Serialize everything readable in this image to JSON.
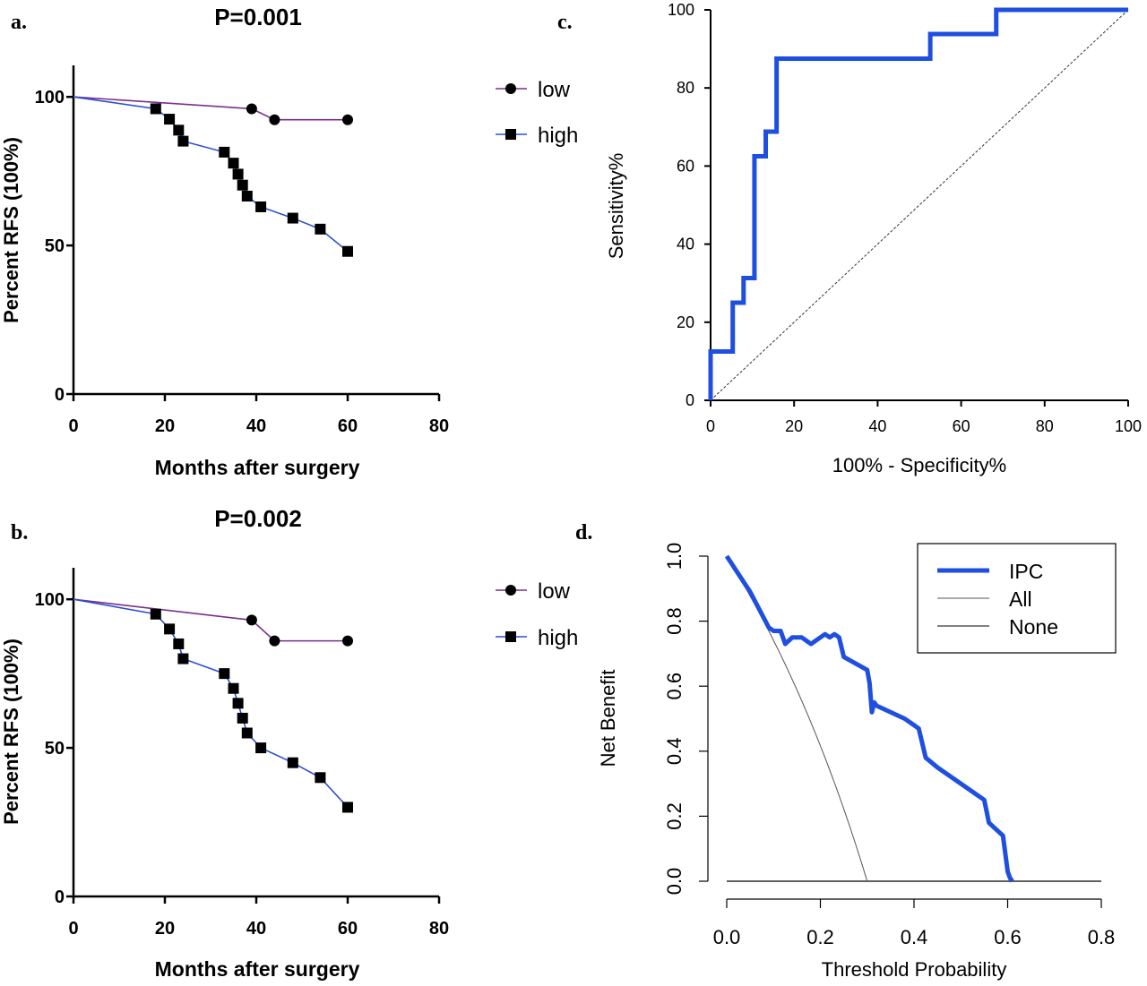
{
  "chart_data": [
    {
      "panel": "a.",
      "type": "line",
      "title": "P=0.001",
      "xlabel": "Months after surgery",
      "ylabel": "Percent  RFS (100%)",
      "xlim": [
        0,
        80
      ],
      "ylim": [
        0,
        110
      ],
      "xticks": [
        "0",
        "20",
        "40",
        "60",
        "80"
      ],
      "yticks": [
        "0",
        "50",
        "100"
      ],
      "legend": "top-right",
      "series": [
        {
          "name": "low",
          "marker": "circle",
          "color": "#7b2d8b",
          "x": [
            0,
            39,
            44,
            60
          ],
          "y": [
            100,
            96,
            92.3,
            92.3
          ],
          "marked": [
            false,
            true,
            true,
            true
          ]
        },
        {
          "name": "high",
          "marker": "square",
          "color": "#2b4fd6",
          "x": [
            0,
            18,
            21,
            23,
            24,
            33,
            35,
            36,
            37,
            38,
            41,
            48,
            54,
            60
          ],
          "y": [
            100,
            96,
            92.5,
            88.8,
            85.1,
            81.4,
            77.7,
            74,
            70.3,
            66.6,
            63,
            59.2,
            55.5,
            48
          ],
          "marked": [
            false,
            true,
            true,
            true,
            true,
            true,
            true,
            true,
            true,
            true,
            true,
            true,
            true,
            true
          ]
        }
      ]
    },
    {
      "panel": "b.",
      "type": "line",
      "title": "P=0.002",
      "xlabel": "Months after surgery",
      "ylabel": "Percent  RFS (100%)",
      "xlim": [
        0,
        80
      ],
      "ylim": [
        0,
        110
      ],
      "xticks": [
        "0",
        "20",
        "40",
        "60",
        "80"
      ],
      "yticks": [
        "0",
        "50",
        "100"
      ],
      "legend": "top-right",
      "series": [
        {
          "name": "low",
          "marker": "circle",
          "color": "#7b2d8b",
          "x": [
            0,
            39,
            44,
            60
          ],
          "y": [
            100,
            93,
            86,
            86
          ],
          "marked": [
            false,
            true,
            true,
            true
          ]
        },
        {
          "name": "high",
          "marker": "square",
          "color": "#2b4fd6",
          "x": [
            0,
            18,
            21,
            23,
            24,
            33,
            35,
            36,
            37,
            38,
            41,
            48,
            54,
            60
          ],
          "y": [
            100,
            95,
            90,
            85,
            80,
            75,
            70,
            65,
            60,
            55,
            50,
            45,
            40,
            30
          ],
          "marked": [
            false,
            true,
            true,
            true,
            true,
            true,
            true,
            true,
            true,
            true,
            true,
            true,
            true,
            true
          ]
        }
      ]
    },
    {
      "panel": "c.",
      "type": "line",
      "title": "",
      "xlabel": "100% - Specificity%",
      "ylabel": "Sensitivity%",
      "xlim": [
        0,
        100
      ],
      "ylim": [
        0,
        100
      ],
      "xticks": [
        "0",
        "20",
        "40",
        "60",
        "80",
        "100"
      ],
      "yticks": [
        "0",
        "20",
        "40",
        "60",
        "80",
        "100"
      ],
      "series": [
        {
          "name": "",
          "color": "#1f4fe0",
          "x": [
            0,
            0,
            5.3,
            5.3,
            7.9,
            7.9,
            10.5,
            10.5,
            13.2,
            13.2,
            15.8,
            15.8,
            52.6,
            52.6,
            68.4,
            68.4,
            100
          ],
          "y": [
            0,
            12.5,
            12.5,
            25,
            25,
            31.3,
            31.3,
            62.5,
            62.5,
            68.8,
            68.8,
            87.5,
            87.5,
            93.8,
            93.8,
            100,
            100
          ]
        },
        {
          "name": "",
          "style": "dashed",
          "color": "#333333",
          "x": [
            0,
            100
          ],
          "y": [
            0,
            100
          ]
        }
      ]
    },
    {
      "panel": "d.",
      "type": "line",
      "title": "",
      "xlabel": "Threshold Probability",
      "ylabel": "Net Benefit",
      "xlim": [
        0,
        0.8
      ],
      "ylim": [
        0,
        1
      ],
      "xticks": [
        "0.0",
        "0.2",
        "0.4",
        "0.6",
        "0.8"
      ],
      "yticks": [
        "0.0",
        "0.2",
        "0.4",
        "0.6",
        "0.8",
        "1.0"
      ],
      "legend": "top-right",
      "series": [
        {
          "name": "IPC",
          "color": "#1f4fe0",
          "x": [
            0,
            0.05,
            0.09,
            0.1,
            0.115,
            0.125,
            0.14,
            0.16,
            0.18,
            0.2,
            0.21,
            0.22,
            0.23,
            0.24,
            0.25,
            0.3,
            0.305,
            0.31,
            0.315,
            0.32,
            0.35,
            0.38,
            0.41,
            0.425,
            0.45,
            0.48,
            0.52,
            0.55,
            0.56,
            0.575,
            0.59,
            0.6,
            0.605,
            0.61
          ],
          "y": [
            1.0,
            0.89,
            0.78,
            0.77,
            0.77,
            0.73,
            0.75,
            0.75,
            0.73,
            0.75,
            0.76,
            0.75,
            0.76,
            0.75,
            0.69,
            0.65,
            0.61,
            0.52,
            0.55,
            0.54,
            0.52,
            0.5,
            0.47,
            0.38,
            0.35,
            0.32,
            0.28,
            0.25,
            0.18,
            0.16,
            0.14,
            0.03,
            0.01,
            0.0
          ]
        },
        {
          "name": "All",
          "color": "#555555",
          "formula": "(0.3 - t) / (0.3 * (1 - t)) * 0.765 / 0.765",
          "x": [
            0,
            0.05,
            0.1,
            0.15,
            0.2,
            0.25,
            0.3
          ],
          "y": [
            1.0,
            0.88,
            0.76,
            0.62,
            0.46,
            0.26,
            0.0
          ]
        },
        {
          "name": "None",
          "color": "#000000",
          "x": [
            0,
            0.8
          ],
          "y": [
            0,
            0
          ]
        }
      ]
    }
  ]
}
